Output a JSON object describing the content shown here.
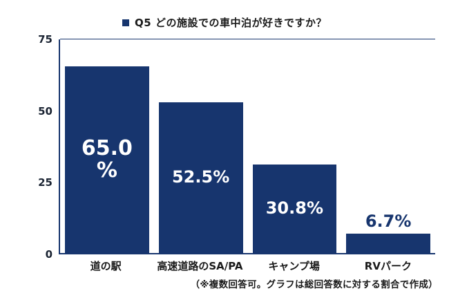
{
  "accent_color": "#17356E",
  "footnote": "（※複数回答可。グラフは総回答数に対する割合で作成）",
  "chart_data": {
    "type": "bar",
    "title": "Q5 どの施設での車中泊が好きですか？",
    "categories": [
      "道の駅",
      "高速道路のSA/PA",
      "キャンプ場",
      "RVパーク"
    ],
    "values": [
      65.0,
      52.5,
      30.8,
      6.7
    ],
    "value_labels": [
      [
        "65.0",
        "%"
      ],
      [
        "52.5%"
      ],
      [
        "30.8%"
      ],
      [
        "6.7%"
      ]
    ],
    "label_placement": [
      "inside",
      "inside",
      "inside",
      "outside"
    ],
    "xlabel": "",
    "ylabel": "",
    "ylim": [
      0,
      75
    ],
    "yticks": [
      0,
      25,
      50,
      75
    ],
    "gridlines": [
      75
    ],
    "grid": "top-line-only",
    "legend_position": "top-center",
    "legend_marker": "square",
    "bar_color": "#17356E",
    "inside_label_color": "#FFFFFF",
    "outside_label_color": "#17356E",
    "axis_color": "#17356E",
    "tick_label_color": "#1B2433"
  }
}
